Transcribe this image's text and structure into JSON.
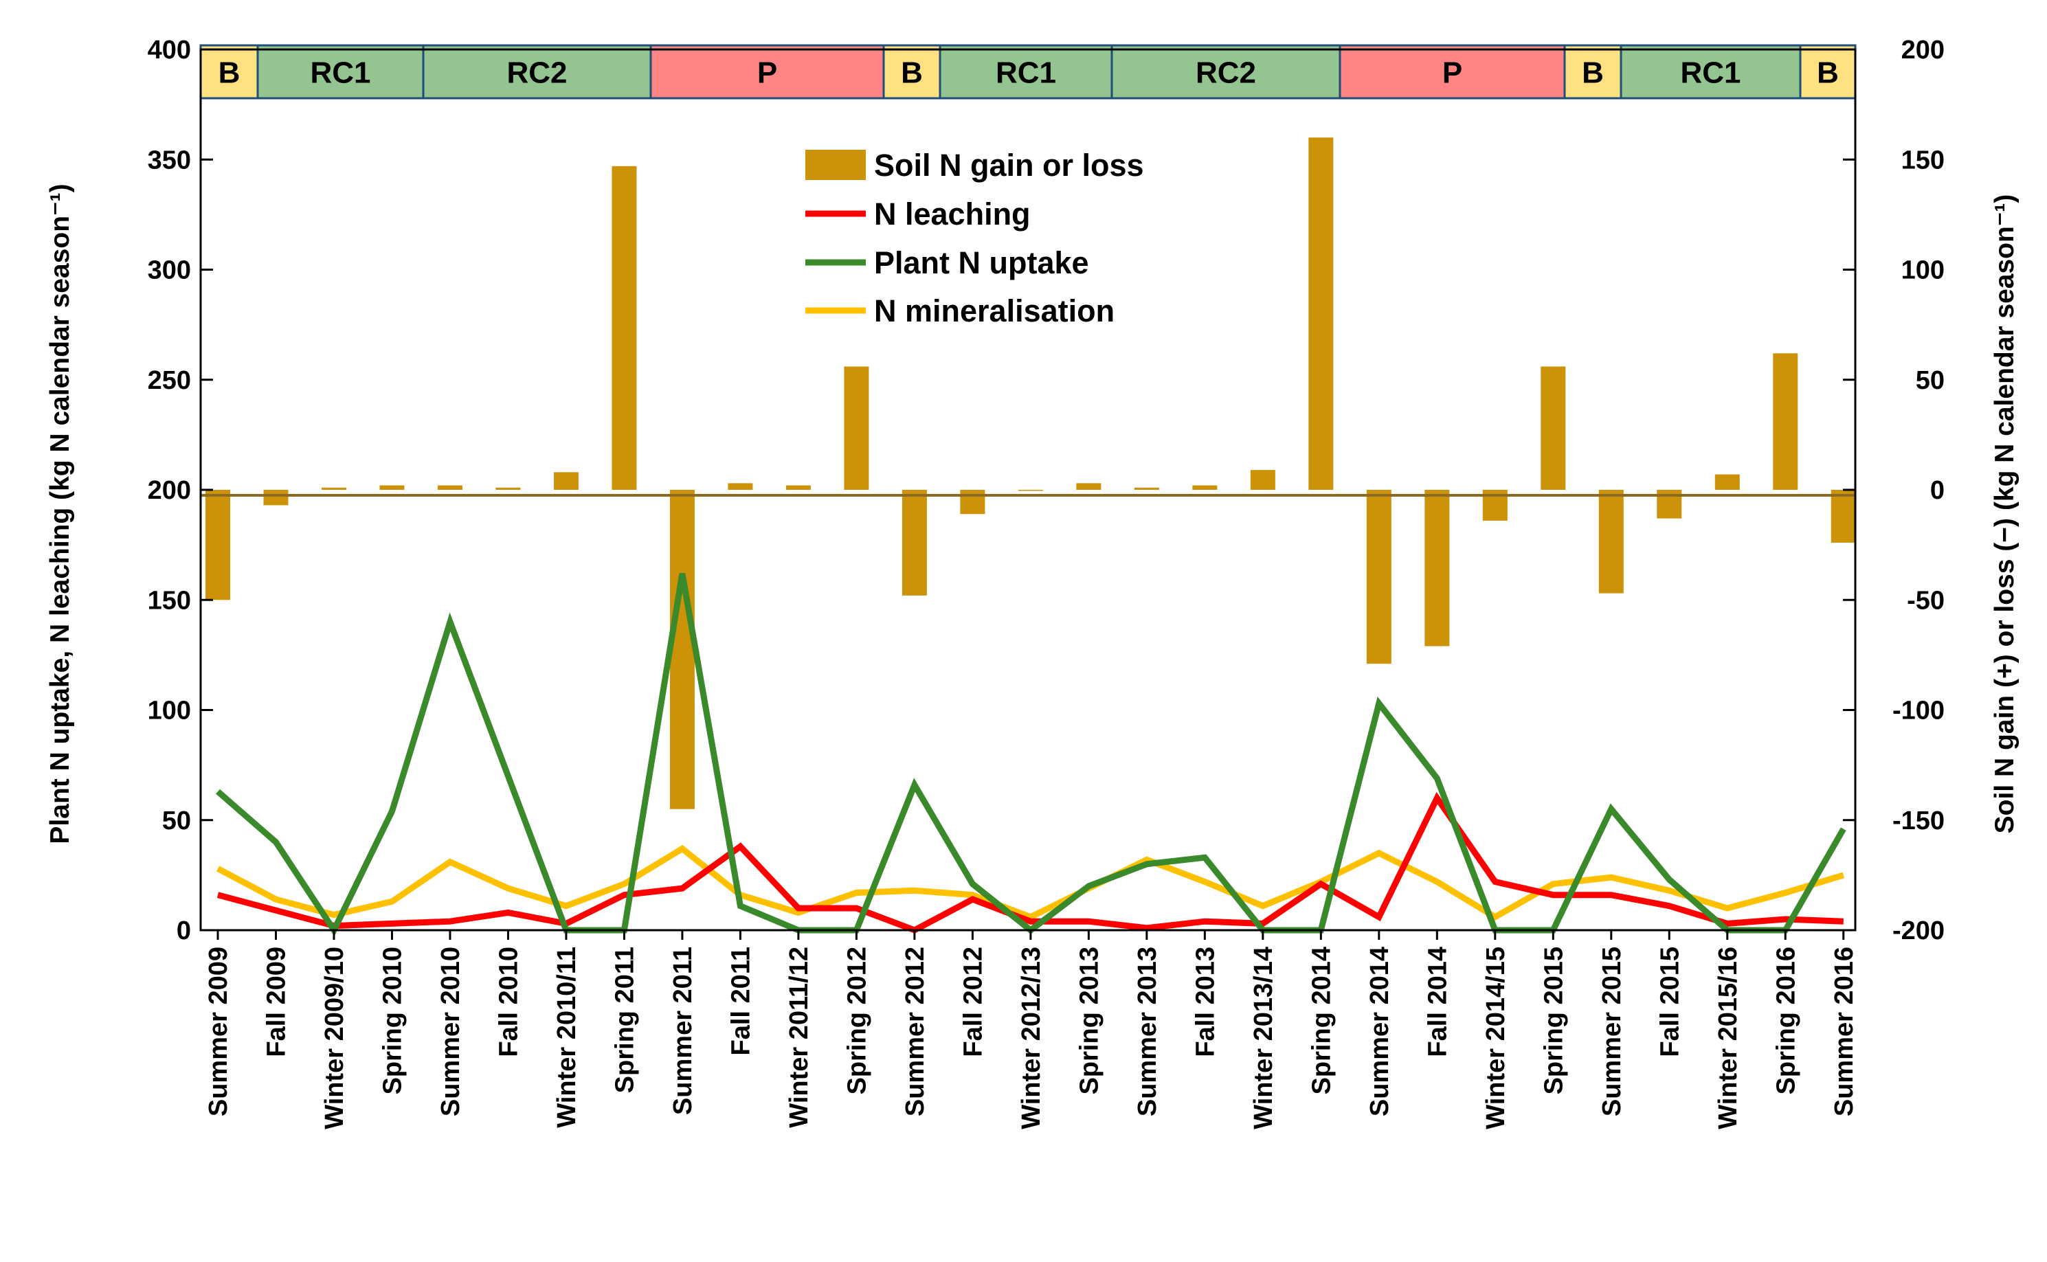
{
  "chart_data": {
    "type": "bar+line",
    "categories": [
      "Summer 2009",
      "Fall 2009",
      "Winter 2009/10",
      "Spring 2010",
      "Summer 2010",
      "Fall 2010",
      "Winter 2010/11",
      "Spring 2011",
      "Summer 2011",
      "Fall 2011",
      "Winter 2011/12",
      "Spring 2012",
      "Summer 2012",
      "Fall 2012",
      "Winter 2012/13",
      "Spring 2013",
      "Summer 2013",
      "Fall 2013",
      "Winter 2013/14",
      "Spring 2014",
      "Summer 2014",
      "Fall 2014",
      "Winter 2014/15",
      "Spring 2015",
      "Summer 2015",
      "Fall 2015",
      "Winter 2015/16",
      "Spring 2016",
      "Summer 2016"
    ],
    "y_left": {
      "label": "Plant N uptake, N leaching (kg N calendar season⁻¹)",
      "range": [
        0,
        400
      ],
      "ticks": [
        "0",
        "50",
        "100",
        "150",
        "200",
        "250",
        "300",
        "350",
        "400"
      ]
    },
    "y_right": {
      "label": "Soil N gain (+) or loss (−) (kg N calendar season⁻¹)",
      "range": [
        -200,
        200
      ],
      "ticks": [
        "-200",
        "-150",
        "-100",
        "-50",
        "0",
        "50",
        "100",
        "150",
        "200"
      ]
    },
    "bars": {
      "name": "Soil N gain or loss",
      "axis": "right",
      "color": "#CC9208",
      "values": [
        -50,
        -7,
        1,
        2,
        2,
        1,
        8,
        147,
        -145,
        3,
        2,
        56,
        -48,
        -11,
        0,
        3,
        1,
        2,
        9,
        160,
        -79,
        -71,
        -14,
        56,
        -47,
        -13,
        7,
        62,
        -24
      ]
    },
    "series": [
      {
        "name": "N leaching",
        "axis": "left",
        "color": "#FF0000",
        "values": [
          16,
          9,
          2,
          3,
          4,
          8,
          3,
          16,
          19,
          38,
          10,
          10,
          0,
          14,
          4,
          4,
          1,
          4,
          3,
          21,
          6,
          60,
          22,
          16,
          16,
          11,
          3,
          5,
          4
        ]
      },
      {
        "name": "Plant N uptake",
        "axis": "left",
        "color": "#3A8A2C",
        "values": [
          63,
          40,
          0,
          54,
          140,
          70,
          0,
          0,
          162,
          11,
          0,
          0,
          66,
          21,
          0,
          20,
          30,
          33,
          0,
          0,
          103,
          69,
          0,
          0,
          55,
          23,
          0,
          0,
          46
        ]
      },
      {
        "name": "N mineralisation",
        "axis": "left",
        "color": "#FFC000",
        "values": [
          28,
          14,
          7,
          13,
          31,
          19,
          11,
          21,
          37,
          16,
          8,
          17,
          18,
          16,
          6,
          19,
          32,
          22,
          11,
          22,
          35,
          22,
          6,
          21,
          24,
          18,
          10,
          17,
          25
        ]
      }
    ],
    "rotation_bands": [
      {
        "label": "B",
        "color": "#FFE182"
      },
      {
        "label": "RC1",
        "color": "#94C490"
      },
      {
        "label": "RC2",
        "color": "#94C490"
      },
      {
        "label": "P",
        "color": "#FF8585"
      },
      {
        "label": "B",
        "color": "#FFE182"
      },
      {
        "label": "RC1",
        "color": "#94C490"
      },
      {
        "label": "RC2",
        "color": "#94C490"
      },
      {
        "label": "P",
        "color": "#FF8585"
      },
      {
        "label": "B",
        "color": "#FFE182"
      },
      {
        "label": "RC1",
        "color": "#94C490"
      },
      {
        "label": "B",
        "color": "#FFE182"
      }
    ],
    "legend": {
      "placement": "top-center",
      "items": [
        "Soil N gain or loss",
        "N leaching",
        "Plant N uptake",
        "N mineralisation"
      ]
    },
    "grid": false
  }
}
